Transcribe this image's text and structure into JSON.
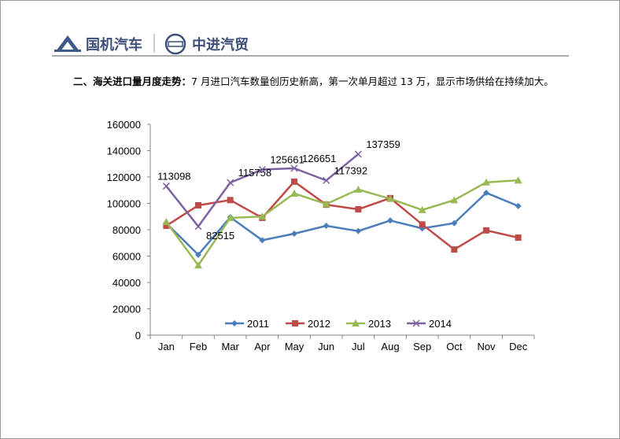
{
  "header": {
    "brand": "国机汽车",
    "partner": "中进汽贸"
  },
  "section": {
    "heading": "二、海关进口量月度走势：",
    "text": "7 月进口汽车数量创历史新高，第一次单月超过 13 万，显示市场供给在持续加大。"
  },
  "chart_data": {
    "type": "line",
    "categories": [
      "Jan",
      "Feb",
      "Mar",
      "Apr",
      "May",
      "Jun",
      "Jul",
      "Aug",
      "Sep",
      "Oct",
      "Nov",
      "Dec"
    ],
    "series": [
      {
        "name": "2011",
        "color": "#4a7ebb",
        "marker": "diamond",
        "values": [
          85000,
          61000,
          89500,
          72000,
          77000,
          83000,
          79000,
          87000,
          81000,
          85000,
          108000,
          98000
        ]
      },
      {
        "name": "2012",
        "color": "#be4b48",
        "marker": "square",
        "values": [
          83000,
          98500,
          102500,
          89000,
          116500,
          99000,
          95500,
          104000,
          84000,
          65000,
          79500,
          74000
        ]
      },
      {
        "name": "2013",
        "color": "#98b954",
        "marker": "triangle",
        "values": [
          86000,
          53000,
          89000,
          90000,
          107500,
          99500,
          110500,
          103500,
          95000,
          102500,
          116000,
          117500
        ]
      },
      {
        "name": "2014",
        "color": "#7d60a0",
        "marker": "x",
        "show_labels": true,
        "values": [
          113098,
          82515,
          115758,
          125661,
          126651,
          117392,
          137359,
          null,
          null,
          null,
          null,
          null
        ]
      }
    ],
    "ylim": [
      0,
      160000
    ],
    "yticks": [
      0,
      20000,
      40000,
      60000,
      80000,
      100000,
      120000,
      140000,
      160000
    ],
    "legend": "bottom"
  }
}
